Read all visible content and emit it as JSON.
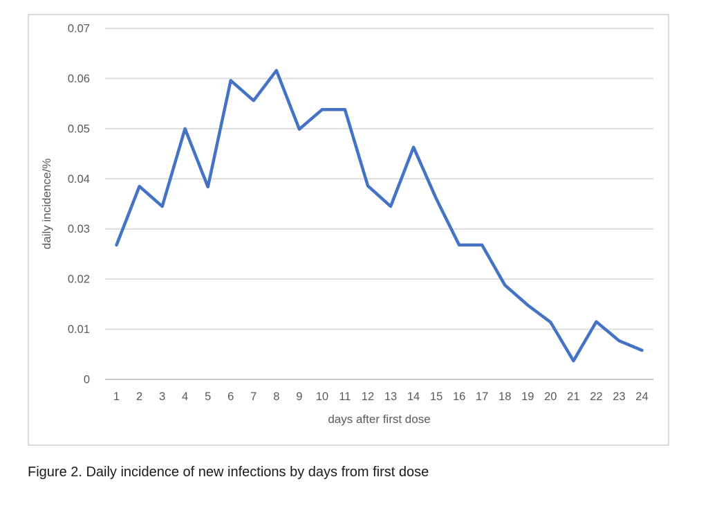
{
  "figure": {
    "caption": "Figure 2. Daily incidence of new infections by days from first dose"
  },
  "chart_data": {
    "type": "line",
    "title": "",
    "xlabel": "days after first dose",
    "ylabel": "daily incidence/%",
    "categories": [
      "1",
      "2",
      "3",
      "4",
      "5",
      "6",
      "7",
      "8",
      "9",
      "10",
      "11",
      "12",
      "13",
      "14",
      "15",
      "16",
      "17",
      "18",
      "19",
      "20",
      "21",
      "22",
      "23",
      "24"
    ],
    "values": [
      0.0268,
      0.0385,
      0.0345,
      0.05,
      0.0384,
      0.0596,
      0.0556,
      0.0616,
      0.0499,
      0.0538,
      0.0538,
      0.0386,
      0.0345,
      0.0463,
      0.036,
      0.0268,
      0.0268,
      0.0188,
      0.0148,
      0.0114,
      0.0037,
      0.0115,
      0.0077,
      0.0058
    ],
    "ylim": [
      0,
      0.07
    ],
    "ytick_step": 0.01,
    "ytick_labels": [
      "0",
      "0.01",
      "0.02",
      "0.03",
      "0.04",
      "0.05",
      "0.06",
      "0.07"
    ],
    "grid": "horizontal",
    "legend": "none",
    "colors": {
      "series_line": "#4472C4",
      "gridline": "#dcdcdc",
      "axis_line": "#c6c6c6",
      "tick_label": "#595959",
      "axis_title": "#595959",
      "frame_border": "#dadada"
    }
  }
}
